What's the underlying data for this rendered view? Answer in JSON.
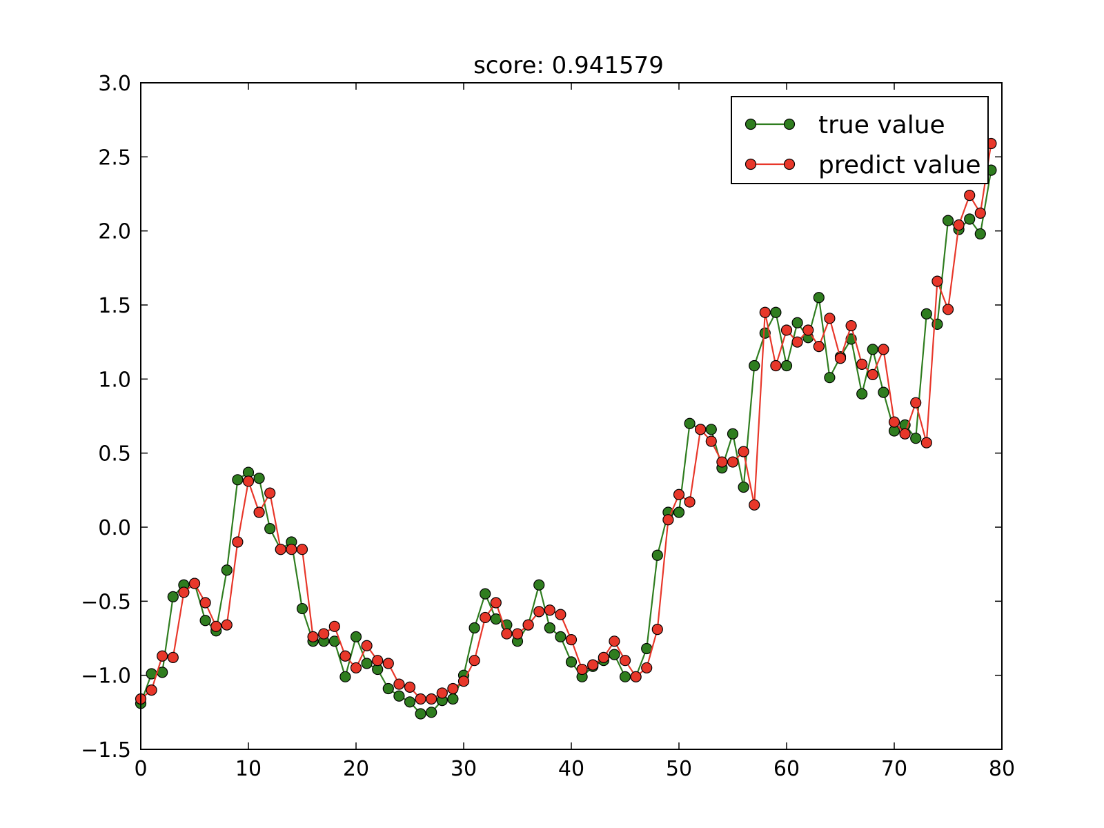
{
  "chart_data": {
    "type": "line",
    "title": "score: 0.941579",
    "xlabel": "",
    "ylabel": "",
    "xlim": [
      0,
      80
    ],
    "ylim": [
      -1.5,
      3.0
    ],
    "xticks": [
      0,
      10,
      20,
      30,
      40,
      50,
      60,
      70,
      80
    ],
    "xtick_labels": [
      "0",
      "10",
      "20",
      "30",
      "40",
      "50",
      "60",
      "70",
      "80"
    ],
    "yticks": [
      -1.5,
      -1.0,
      -0.5,
      0.0,
      0.5,
      1.0,
      1.5,
      2.0,
      2.5,
      3.0
    ],
    "ytick_labels": [
      "−1.5",
      "−1.0",
      "−0.5",
      "0.0",
      "0.5",
      "1.0",
      "1.5",
      "2.0",
      "2.5",
      "3.0"
    ],
    "grid": false,
    "legend_position": "top-right",
    "x": [
      0,
      1,
      2,
      3,
      4,
      5,
      6,
      7,
      8,
      9,
      10,
      11,
      12,
      13,
      14,
      15,
      16,
      17,
      18,
      19,
      20,
      21,
      22,
      23,
      24,
      25,
      26,
      27,
      28,
      29,
      30,
      31,
      32,
      33,
      34,
      35,
      36,
      37,
      38,
      39,
      40,
      41,
      42,
      43,
      44,
      45,
      46,
      47,
      48,
      49,
      50,
      51,
      52,
      53,
      54,
      55,
      56,
      57,
      58,
      59,
      60,
      61,
      62,
      63,
      64,
      65,
      66,
      67,
      68,
      69,
      70,
      71,
      72,
      73,
      74,
      75,
      76,
      77,
      78,
      79
    ],
    "series": [
      {
        "name": "true value",
        "color": "#2f7d1f",
        "values": [
          -1.19,
          -0.99,
          -0.98,
          -0.47,
          -0.39,
          -0.38,
          -0.63,
          -0.7,
          -0.29,
          0.32,
          0.37,
          0.33,
          -0.01,
          -0.15,
          -0.1,
          -0.55,
          -0.77,
          -0.77,
          -0.77,
          -1.01,
          -0.74,
          -0.92,
          -0.96,
          -1.09,
          -1.14,
          -1.18,
          -1.26,
          -1.25,
          -1.17,
          -1.16,
          -1.0,
          -0.68,
          -0.45,
          -0.62,
          -0.66,
          -0.77,
          -0.66,
          -0.39,
          -0.68,
          -0.74,
          -0.91,
          -1.01,
          -0.94,
          -0.9,
          -0.86,
          -1.01,
          -1.01,
          -0.82,
          -0.19,
          0.1,
          0.1,
          0.7,
          0.66,
          0.66,
          0.4,
          0.63,
          0.27,
          1.09,
          1.31,
          1.45,
          1.09,
          1.38,
          1.28,
          1.55,
          1.01,
          1.15,
          1.27,
          0.9,
          1.2,
          0.91,
          0.65,
          0.69,
          0.6,
          1.44,
          1.37,
          2.07,
          2.01,
          2.08,
          1.98,
          2.41
        ]
      },
      {
        "name": "predict value",
        "color": "#e8372a",
        "values": [
          -1.16,
          -1.1,
          -0.87,
          -0.88,
          -0.44,
          -0.38,
          -0.51,
          -0.67,
          -0.66,
          -0.1,
          0.31,
          0.1,
          0.23,
          -0.15,
          -0.15,
          -0.15,
          -0.74,
          -0.72,
          -0.67,
          -0.87,
          -0.95,
          -0.8,
          -0.9,
          -0.92,
          -1.06,
          -1.08,
          -1.16,
          -1.16,
          -1.12,
          -1.09,
          -1.04,
          -0.9,
          -0.61,
          -0.51,
          -0.72,
          -0.72,
          -0.66,
          -0.57,
          -0.56,
          -0.59,
          -0.76,
          -0.96,
          -0.93,
          -0.88,
          -0.77,
          -0.9,
          -1.01,
          -0.95,
          -0.69,
          0.05,
          0.22,
          0.17,
          0.66,
          0.58,
          0.44,
          0.44,
          0.51,
          0.15,
          1.45,
          1.09,
          1.33,
          1.25,
          1.33,
          1.22,
          1.41,
          1.14,
          1.36,
          1.1,
          1.03,
          1.2,
          0.71,
          0.63,
          0.84,
          0.57,
          1.66,
          1.47,
          2.04,
          2.24,
          2.12,
          2.59
        ]
      }
    ]
  }
}
